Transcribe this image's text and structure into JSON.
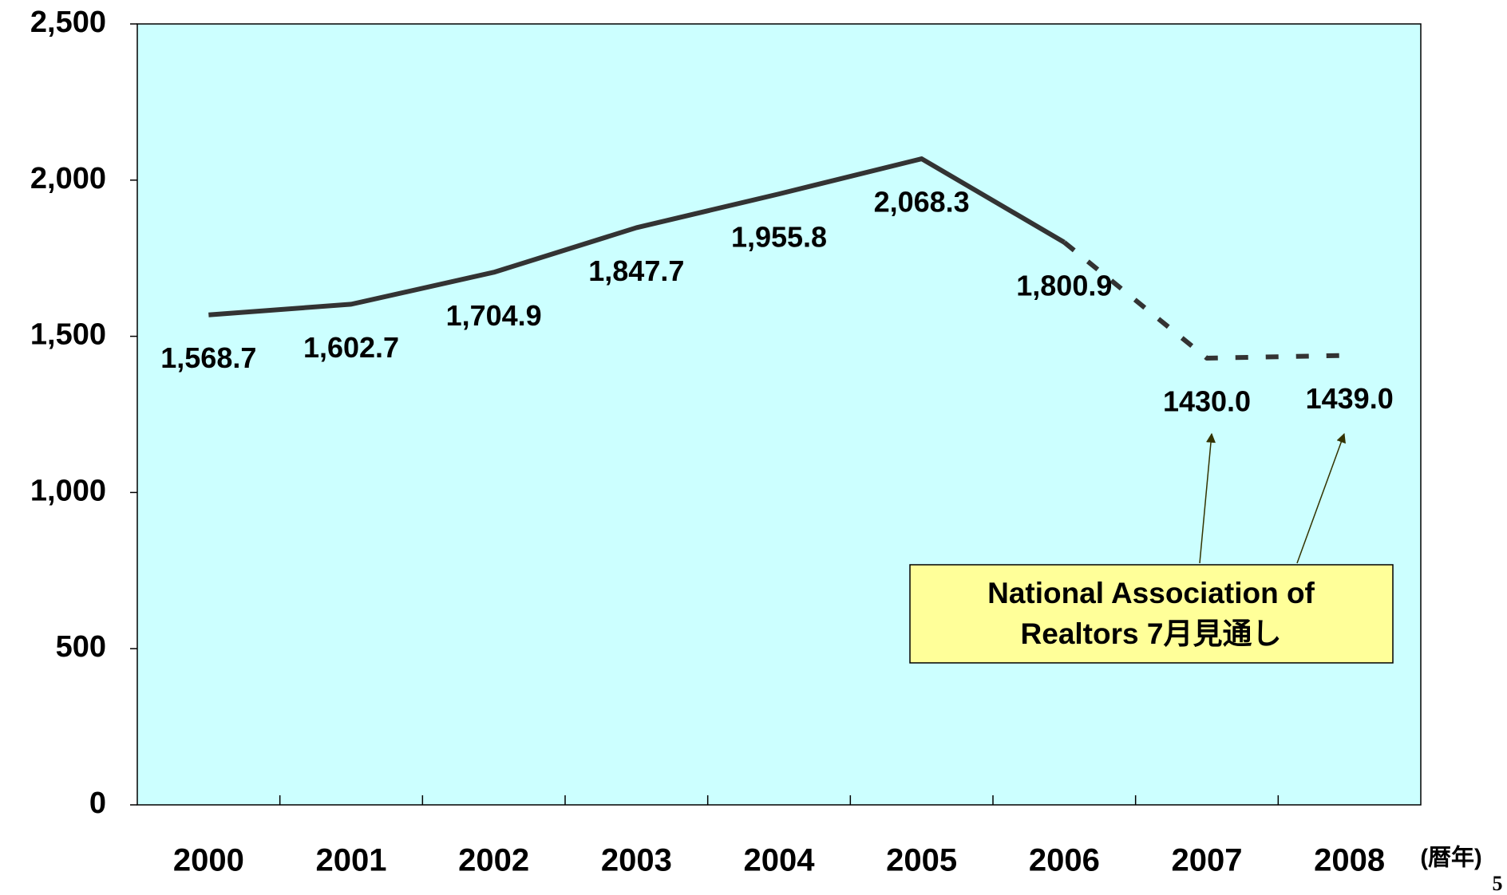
{
  "chart_data": {
    "type": "line",
    "categories": [
      "2000",
      "2001",
      "2002",
      "2003",
      "2004",
      "2005",
      "2006",
      "2007",
      "2008"
    ],
    "values": [
      1568.7,
      1602.7,
      1704.9,
      1847.7,
      1955.8,
      2068.3,
      1800.9,
      1430.0,
      1439.0
    ],
    "value_labels": [
      "1,568.7",
      "1,602.7",
      "1,704.9",
      "1,847.7",
      "1,955.8",
      "2,068.3",
      "1,800.9",
      "1430.0",
      "1439.0"
    ],
    "line_styles": [
      "solid",
      "solid",
      "solid",
      "solid",
      "solid",
      "solid",
      "solid",
      "dashed",
      "dashed"
    ],
    "color": "#333333",
    "background": "#ccffff",
    "xlabel": "(暦年)",
    "ylim": [
      0,
      2500
    ],
    "yticks": [
      0,
      {
        "value": 500,
        "label": "500"
      },
      {
        "value": 1000,
        "label": "1,000"
      },
      {
        "value": 1500,
        "label": "1,500"
      },
      {
        "value": 2000,
        "label": "2,000"
      },
      {
        "value": 2500,
        "label": "2,500"
      }
    ],
    "annotation": [
      "National Association of",
      "Realtors 7月見通し"
    ],
    "page_number": "5"
  }
}
